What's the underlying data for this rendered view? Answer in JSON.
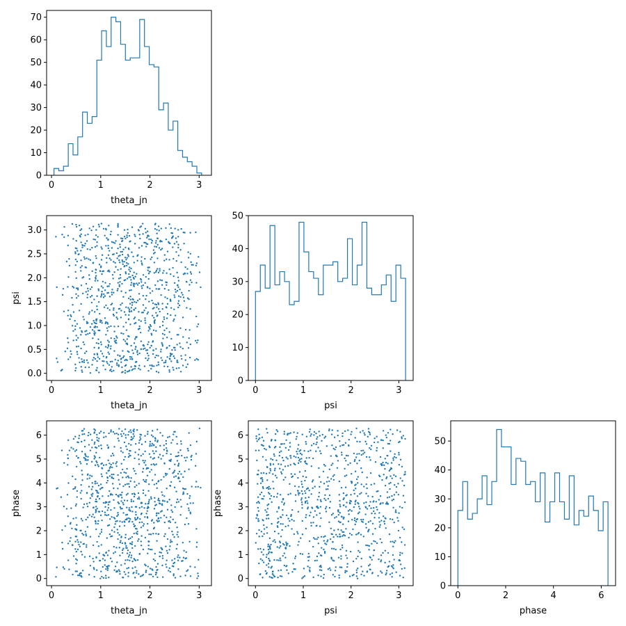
{
  "chart_data": [
    {
      "id": "hist-theta_jn",
      "type": "histogram",
      "xlabel": "theta_jn",
      "ylabel": "",
      "xlim": [
        -0.1,
        3.25
      ],
      "ylim": [
        0,
        73
      ],
      "xticks": [
        0,
        1,
        2,
        3
      ],
      "yticks": [
        0,
        10,
        20,
        30,
        40,
        50,
        60,
        70
      ],
      "bin_range": [
        0.05,
        3.05
      ],
      "counts": [
        3,
        2,
        4,
        14,
        9,
        17,
        28,
        23,
        26,
        51,
        64,
        57,
        70,
        68,
        58,
        51,
        52,
        52,
        69,
        57,
        49,
        48,
        29,
        32,
        20,
        24,
        11,
        8,
        6,
        4,
        1
      ]
    },
    {
      "id": "hist-psi",
      "type": "histogram",
      "xlabel": "psi",
      "ylabel": "",
      "xlim": [
        -0.15,
        3.3
      ],
      "ylim": [
        0,
        50
      ],
      "xticks": [
        0,
        1,
        2,
        3
      ],
      "yticks": [
        0,
        10,
        20,
        30,
        40,
        50
      ],
      "bin_range": [
        0,
        3.14159
      ],
      "counts": [
        27,
        35,
        28,
        47,
        29,
        33,
        30,
        23,
        24,
        48,
        39,
        33,
        31,
        26,
        35,
        35,
        36,
        30,
        31,
        43,
        29,
        35,
        48,
        28,
        26,
        26,
        29,
        32,
        24,
        35,
        31
      ]
    },
    {
      "id": "hist-phase",
      "type": "histogram",
      "xlabel": "phase",
      "ylabel": "",
      "xlim": [
        -0.3,
        6.6
      ],
      "ylim": [
        0,
        57
      ],
      "xticks": [
        0,
        2,
        4,
        6
      ],
      "yticks": [
        0,
        10,
        20,
        30,
        40,
        50
      ],
      "bin_range": [
        0,
        6.28318
      ],
      "counts": [
        26,
        36,
        23,
        25,
        30,
        38,
        28,
        36,
        54,
        48,
        48,
        35,
        44,
        43,
        35,
        36,
        29,
        39,
        22,
        29,
        39,
        29,
        23,
        38,
        21,
        26,
        24,
        31,
        26,
        19,
        29
      ]
    },
    {
      "id": "scatter-theta_jn-psi",
      "type": "scatter",
      "xlabel": "theta_jn",
      "ylabel": "psi",
      "xlim": [
        -0.1,
        3.25
      ],
      "ylim": [
        -0.15,
        3.3
      ],
      "xticks": [
        0,
        1,
        2,
        3
      ],
      "yticks": [
        0.0,
        0.5,
        1.0,
        1.5,
        2.0,
        2.5,
        3.0
      ],
      "ytick_labels": [
        "0.0",
        "0.5",
        "1.0",
        "1.5",
        "2.0",
        "2.5",
        "3.0"
      ],
      "n_points": 1000,
      "x_distribution": "sine-like over [0, 3.14], concentrated near 1.57",
      "y_distribution": "uniform over [0, 3.14]"
    },
    {
      "id": "scatter-theta_jn-phase",
      "type": "scatter",
      "xlabel": "theta_jn",
      "ylabel": "phase",
      "xlim": [
        -0.1,
        3.25
      ],
      "ylim": [
        -0.3,
        6.6
      ],
      "xticks": [
        0,
        1,
        2,
        3
      ],
      "yticks": [
        0,
        1,
        2,
        3,
        4,
        5,
        6
      ],
      "n_points": 1000,
      "x_distribution": "sine-like over [0, 3.14], concentrated near 1.57",
      "y_distribution": "uniform over [0, 6.28]"
    },
    {
      "id": "scatter-psi-phase",
      "type": "scatter",
      "xlabel": "psi",
      "ylabel": "phase",
      "xlim": [
        -0.15,
        3.3
      ],
      "ylim": [
        -0.3,
        6.6
      ],
      "xticks": [
        0,
        1,
        2,
        3
      ],
      "yticks": [
        0,
        1,
        2,
        3,
        4,
        5,
        6
      ],
      "n_points": 1000,
      "x_distribution": "uniform over [0, 3.14]",
      "y_distribution": "uniform over [0, 6.28]"
    }
  ],
  "colors": {
    "series": "#1f77b4",
    "axes": "#000000"
  }
}
